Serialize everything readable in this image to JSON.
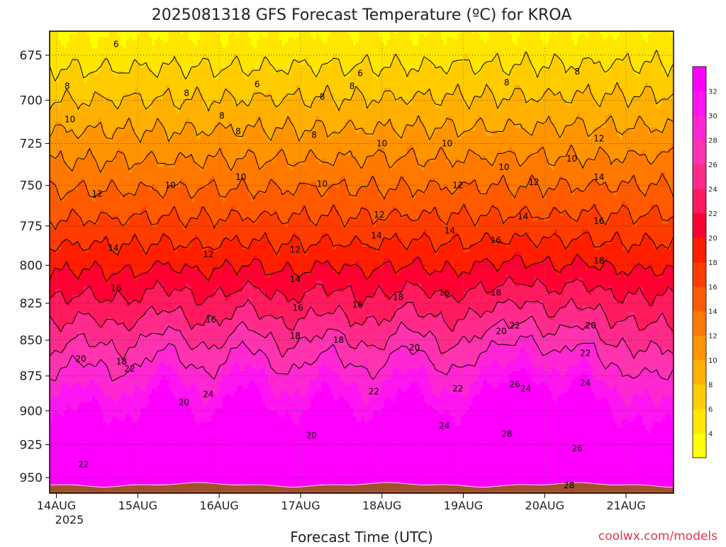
{
  "chart_data": {
    "type": "contour",
    "title": "2025081318 GFS Forecast Temperature (ºC) for KROA",
    "xlabel": "Forecast Time (UTC)",
    "ylabel": "",
    "credit": "coolwx.com/models",
    "x_ticks": [
      "14AUG",
      "15AUG",
      "16AUG",
      "17AUG",
      "18AUG",
      "19AUG",
      "20AUG",
      "21AUG"
    ],
    "x_year": "2025",
    "y_ticks": [
      675,
      700,
      725,
      750,
      775,
      800,
      825,
      850,
      875,
      900,
      925,
      950
    ],
    "ylim": [
      962,
      662
    ],
    "y_scale": "log-pressure",
    "ground_color": "#a0522d",
    "colorbar": {
      "ticks": [
        4,
        6,
        8,
        10,
        12,
        14,
        16,
        18,
        20,
        22,
        24,
        26,
        28,
        30,
        32
      ],
      "colors": [
        "#ffff00",
        "#ffe600",
        "#ffcc00",
        "#ffb000",
        "#ff9400",
        "#ff7800",
        "#ff5a00",
        "#ff3c00",
        "#ff1e00",
        "#ff0033",
        "#ff1a5e",
        "#ff2a8a",
        "#ff33b0",
        "#ff26d4",
        "#ff14f2",
        "#ff00ff"
      ]
    },
    "contour_levels": [
      6,
      8,
      10,
      12,
      14,
      16,
      18,
      20,
      22,
      24,
      26,
      28
    ],
    "contour_labels": [
      {
        "text": "6",
        "t": 2.2,
        "p": 669
      },
      {
        "text": "6",
        "t": 7.4,
        "p": 691
      },
      {
        "text": "6",
        "t": 11.2,
        "p": 685
      },
      {
        "text": "8",
        "t": 0.4,
        "p": 692
      },
      {
        "text": "8",
        "t": 4.8,
        "p": 696
      },
      {
        "text": "8",
        "t": 6.1,
        "p": 709
      },
      {
        "text": "8",
        "t": 9.8,
        "p": 698
      },
      {
        "text": "8",
        "t": 10.9,
        "p": 692
      },
      {
        "text": "8",
        "t": 16.6,
        "p": 690
      },
      {
        "text": "8",
        "t": 19.2,
        "p": 684
      },
      {
        "text": "8",
        "t": 6.7,
        "p": 718
      },
      {
        "text": "8",
        "t": 9.5,
        "p": 720
      },
      {
        "text": "10",
        "t": 0.5,
        "p": 711
      },
      {
        "text": "10",
        "t": 4.2,
        "p": 750
      },
      {
        "text": "10",
        "t": 6.8,
        "p": 745
      },
      {
        "text": "10",
        "t": 9.8,
        "p": 749
      },
      {
        "text": "10",
        "t": 12.0,
        "p": 725
      },
      {
        "text": "10",
        "t": 14.4,
        "p": 725
      },
      {
        "text": "10",
        "t": 16.5,
        "p": 739
      },
      {
        "text": "10",
        "t": 19.0,
        "p": 734
      },
      {
        "text": "12",
        "t": 1.5,
        "p": 755
      },
      {
        "text": "12",
        "t": 5.6,
        "p": 793
      },
      {
        "text": "12",
        "t": 8.8,
        "p": 790
      },
      {
        "text": "12",
        "t": 11.9,
        "p": 768
      },
      {
        "text": "12",
        "t": 14.8,
        "p": 750
      },
      {
        "text": "12",
        "t": 17.6,
        "p": 748
      },
      {
        "text": "12",
        "t": 20.0,
        "p": 722
      },
      {
        "text": "14",
        "t": 2.1,
        "p": 789
      },
      {
        "text": "14",
        "t": 8.8,
        "p": 809
      },
      {
        "text": "14",
        "t": 11.8,
        "p": 781
      },
      {
        "text": "14",
        "t": 14.5,
        "p": 778
      },
      {
        "text": "14",
        "t": 17.2,
        "p": 769
      },
      {
        "text": "14",
        "t": 20.0,
        "p": 745
      },
      {
        "text": "16",
        "t": 2.2,
        "p": 815
      },
      {
        "text": "16",
        "t": 5.7,
        "p": 836
      },
      {
        "text": "16",
        "t": 8.9,
        "p": 828
      },
      {
        "text": "16",
        "t": 11.1,
        "p": 826
      },
      {
        "text": "16",
        "t": 14.3,
        "p": 818
      },
      {
        "text": "16",
        "t": 16.2,
        "p": 784
      },
      {
        "text": "16",
        "t": 20.0,
        "p": 772
      },
      {
        "text": "18",
        "t": 2.4,
        "p": 865
      },
      {
        "text": "18",
        "t": 8.8,
        "p": 847
      },
      {
        "text": "18",
        "t": 10.4,
        "p": 850
      },
      {
        "text": "18",
        "t": 12.6,
        "p": 821
      },
      {
        "text": "18",
        "t": 16.2,
        "p": 818
      },
      {
        "text": "18",
        "t": 20.0,
        "p": 797
      },
      {
        "text": "20",
        "t": 0.9,
        "p": 863
      },
      {
        "text": "20",
        "t": 4.7,
        "p": 894
      },
      {
        "text": "20",
        "t": 9.4,
        "p": 918
      },
      {
        "text": "20",
        "t": 13.2,
        "p": 855
      },
      {
        "text": "20",
        "t": 16.4,
        "p": 844
      },
      {
        "text": "20",
        "t": 19.7,
        "p": 840
      },
      {
        "text": "22",
        "t": 2.7,
        "p": 870
      },
      {
        "text": "22",
        "t": 1.0,
        "p": 940
      },
      {
        "text": "22",
        "t": 11.7,
        "p": 886
      },
      {
        "text": "22",
        "t": 14.8,
        "p": 884
      },
      {
        "text": "22",
        "t": 16.9,
        "p": 840
      },
      {
        "text": "22",
        "t": 19.5,
        "p": 859
      },
      {
        "text": "24",
        "t": 5.6,
        "p": 888
      },
      {
        "text": "24",
        "t": 14.3,
        "p": 911
      },
      {
        "text": "24",
        "t": 17.3,
        "p": 884
      },
      {
        "text": "24",
        "t": 19.5,
        "p": 880
      },
      {
        "text": "26",
        "t": 16.9,
        "p": 881
      },
      {
        "text": "26",
        "t": 19.2,
        "p": 928
      },
      {
        "text": "28",
        "t": 16.6,
        "p": 917
      },
      {
        "text": "28",
        "t": 18.9,
        "p": 956
      }
    ]
  }
}
